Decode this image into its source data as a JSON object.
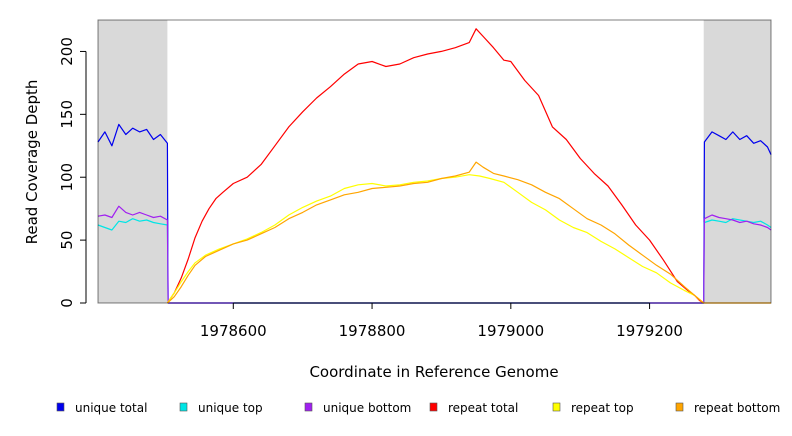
{
  "chart_data": {
    "type": "line",
    "xlabel": "Coordinate in Reference Genome",
    "ylabel": "Read Coverage Depth",
    "xlim": [
      1978405,
      1979375
    ],
    "ylim": [
      0,
      225
    ],
    "x_ticks": [
      1978600,
      1978800,
      1979000,
      1979200
    ],
    "y_ticks": [
      0,
      50,
      100,
      150,
      200
    ],
    "shaded_regions": [
      [
        1978405,
        1978505
      ],
      [
        1979278,
        1979375
      ]
    ],
    "legend_position": "bottom",
    "series": [
      {
        "name": "unique total",
        "color": "#0000ee",
        "x": [
          1978405,
          1978415,
          1978425,
          1978435,
          1978445,
          1978455,
          1978465,
          1978475,
          1978485,
          1978495,
          1978505,
          1978506,
          1979278,
          1979279,
          1979290,
          1979300,
          1979310,
          1979320,
          1979330,
          1979340,
          1979350,
          1979360,
          1979370,
          1979375
        ],
        "y": [
          128,
          136,
          125,
          142,
          134,
          139,
          136,
          138,
          130,
          134,
          127,
          0,
          0,
          128,
          136,
          133,
          130,
          136,
          130,
          133,
          127,
          129,
          124,
          118
        ]
      },
      {
        "name": "unique top",
        "color": "#00e5e5",
        "x": [
          1978405,
          1978415,
          1978425,
          1978435,
          1978445,
          1978455,
          1978465,
          1978475,
          1978485,
          1978495,
          1978505,
          1978506,
          1979278,
          1979279,
          1979290,
          1979300,
          1979310,
          1979320,
          1979330,
          1979340,
          1979350,
          1979360,
          1979370,
          1979375
        ],
        "y": [
          62,
          60,
          58,
          65,
          64,
          67,
          65,
          66,
          64,
          63,
          62,
          0,
          0,
          64,
          66,
          65,
          64,
          67,
          66,
          65,
          64,
          65,
          62,
          60
        ]
      },
      {
        "name": "unique bottom",
        "color": "#a020f0",
        "x": [
          1978405,
          1978415,
          1978425,
          1978435,
          1978445,
          1978455,
          1978465,
          1978475,
          1978485,
          1978495,
          1978505,
          1978506,
          1979278,
          1979279,
          1979290,
          1979300,
          1979310,
          1979320,
          1979330,
          1979340,
          1979350,
          1979360,
          1979370,
          1979375
        ],
        "y": [
          69,
          70,
          68,
          77,
          72,
          70,
          72,
          70,
          68,
          69,
          66,
          0,
          0,
          67,
          70,
          68,
          67,
          66,
          64,
          65,
          63,
          62,
          60,
          58
        ]
      },
      {
        "name": "repeat total",
        "color": "#ff0000",
        "x": [
          1978505,
          1978515,
          1978525,
          1978535,
          1978545,
          1978555,
          1978565,
          1978575,
          1978585,
          1978600,
          1978620,
          1978640,
          1978660,
          1978680,
          1978700,
          1978720,
          1978740,
          1978760,
          1978780,
          1978800,
          1978820,
          1978840,
          1978860,
          1978880,
          1978900,
          1978920,
          1978940,
          1978950,
          1978960,
          1978975,
          1978990,
          1979000,
          1979020,
          1979040,
          1979060,
          1979080,
          1979100,
          1979120,
          1979140,
          1979160,
          1979180,
          1979200,
          1979220,
          1979240,
          1979255,
          1979265,
          1979272,
          1979278
        ],
        "y": [
          0,
          8,
          20,
          35,
          52,
          65,
          75,
          83,
          88,
          95,
          100,
          110,
          125,
          140,
          152,
          163,
          172,
          182,
          190,
          192,
          188,
          190,
          195,
          198,
          200,
          203,
          207,
          218,
          212,
          203,
          193,
          192,
          177,
          165,
          140,
          130,
          115,
          103,
          93,
          78,
          62,
          50,
          34,
          17,
          10,
          6,
          2,
          0
        ]
      },
      {
        "name": "repeat top",
        "color": "#ffff00",
        "x": [
          1978505,
          1978515,
          1978525,
          1978535,
          1978545,
          1978560,
          1978580,
          1978600,
          1978620,
          1978640,
          1978660,
          1978680,
          1978700,
          1978720,
          1978740,
          1978760,
          1978780,
          1978800,
          1978820,
          1978840,
          1978860,
          1978880,
          1978900,
          1978920,
          1978940,
          1978955,
          1978970,
          1978990,
          1979010,
          1979030,
          1979050,
          1979070,
          1979090,
          1979110,
          1979130,
          1979150,
          1979170,
          1979190,
          1979210,
          1979230,
          1979250,
          1979265,
          1979278
        ],
        "y": [
          0,
          8,
          17,
          25,
          32,
          38,
          43,
          47,
          51,
          56,
          62,
          70,
          76,
          81,
          85,
          91,
          94,
          95,
          93,
          94,
          96,
          97,
          99,
          100,
          102,
          101,
          99,
          96,
          88,
          80,
          74,
          66,
          60,
          56,
          49,
          43,
          36,
          29,
          24,
          16,
          10,
          6,
          0
        ]
      },
      {
        "name": "repeat bottom",
        "color": "#ffa500",
        "x": [
          1978505,
          1978515,
          1978525,
          1978535,
          1978545,
          1978560,
          1978580,
          1978600,
          1978620,
          1978640,
          1978660,
          1978680,
          1978700,
          1978720,
          1978740,
          1978760,
          1978780,
          1978800,
          1978820,
          1978840,
          1978860,
          1978880,
          1978900,
          1978920,
          1978940,
          1978950,
          1978960,
          1978975,
          1978990,
          1979010,
          1979030,
          1979050,
          1979070,
          1979090,
          1979110,
          1979130,
          1979150,
          1979170,
          1979190,
          1979210,
          1979230,
          1979250,
          1979265,
          1979278,
          1979290,
          1979375
        ],
        "y": [
          0,
          5,
          13,
          22,
          30,
          37,
          42,
          47,
          50,
          55,
          60,
          67,
          72,
          78,
          82,
          86,
          88,
          91,
          92,
          93,
          95,
          96,
          99,
          101,
          104,
          112,
          108,
          103,
          101,
          98,
          94,
          88,
          83,
          75,
          67,
          62,
          55,
          46,
          38,
          30,
          23,
          13,
          6,
          0,
          0,
          0
        ]
      }
    ]
  }
}
